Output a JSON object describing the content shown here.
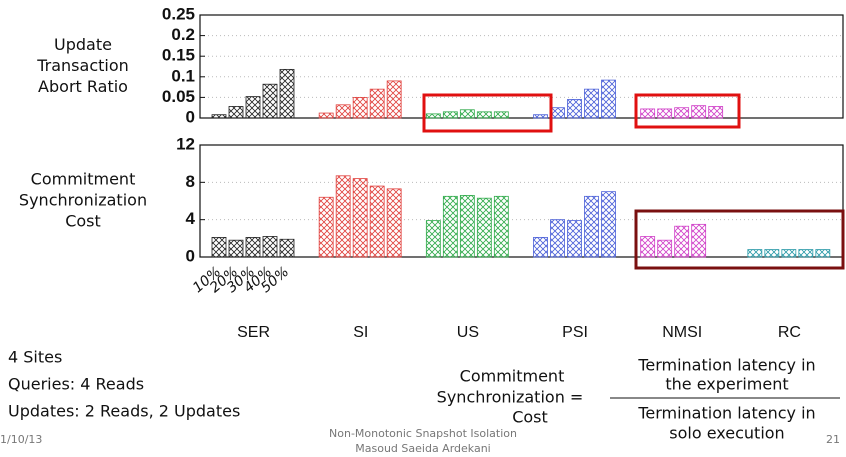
{
  "chart_data": [
    {
      "type": "bar",
      "ylabel": [
        "Update",
        "Transaction",
        "Abort Ratio"
      ],
      "ylim": [
        0,
        0.25
      ],
      "yticks": [
        0,
        0.05,
        0.1,
        0.15,
        0.2,
        0.25
      ],
      "grid": true,
      "category_colors": [
        "#222222",
        "#e0403c",
        "#2faa4a",
        "#4a5fd8",
        "#d040c8",
        "#2a9aa8"
      ],
      "series": [
        {
          "values": [
            0.008,
            0.012,
            0.01,
            0.008,
            0.022,
            0
          ]
        },
        {
          "values": [
            0.028,
            0.032,
            0.015,
            0.025,
            0.022,
            0
          ]
        },
        {
          "values": [
            0.052,
            0.05,
            0.02,
            0.045,
            0.025,
            0
          ]
        },
        {
          "values": [
            0.082,
            0.07,
            0.015,
            0.07,
            0.03,
            0
          ]
        },
        {
          "values": [
            0.118,
            0.09,
            0.015,
            0.092,
            0.028,
            0
          ]
        }
      ]
    },
    {
      "type": "bar",
      "ylabel": [
        "Commitment",
        "Synchronization",
        "Cost"
      ],
      "ylim": [
        0,
        12
      ],
      "yticks": [
        0,
        4,
        8,
        12
      ],
      "grid": true,
      "categories": [
        "SER",
        "SI",
        "US",
        "PSI",
        "NMSI",
        "RC"
      ],
      "category_colors": [
        "#222222",
        "#e0403c",
        "#2faa4a",
        "#4a5fd8",
        "#d040c8",
        "#2a9aa8"
      ],
      "series": [
        {
          "name": "10%",
          "values": [
            2.1,
            6.4,
            3.9,
            2.1,
            2.2,
            0.8
          ]
        },
        {
          "name": "20%",
          "values": [
            1.8,
            8.7,
            6.5,
            4.0,
            1.8,
            0.8
          ]
        },
        {
          "name": "30%",
          "values": [
            2.1,
            8.4,
            6.6,
            3.9,
            3.3,
            0.8
          ]
        },
        {
          "name": "40%",
          "values": [
            2.2,
            7.6,
            6.3,
            6.5,
            3.5,
            0.8
          ]
        },
        {
          "name": "50%",
          "values": [
            1.9,
            7.3,
            6.5,
            7.0,
            0,
            0.8
          ]
        }
      ]
    }
  ],
  "notes": [
    "4 Sites",
    "Queries: 4 Reads",
    "Updates: 2 Reads, 2 Updates"
  ],
  "formula": {
    "lhs": [
      "Commitment",
      "Synchronization =",
      "Cost"
    ],
    "numerator": [
      "Termination latency in",
      "the experiment"
    ],
    "denominator": [
      "Termination latency in",
      "solo execution"
    ]
  },
  "footer": {
    "date": "1/10/13",
    "title": "Non-Monotonic Snapshot Isolation",
    "author": "Masoud Saeida Ardekani",
    "page": "21"
  }
}
